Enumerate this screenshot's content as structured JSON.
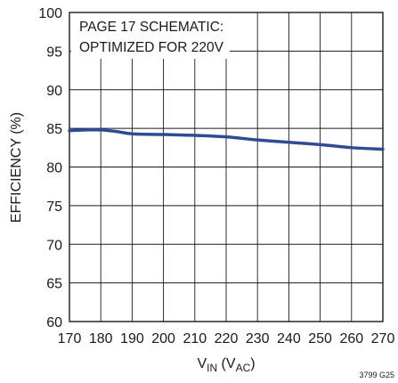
{
  "chart_data": {
    "type": "line",
    "title": "",
    "xlabel": {
      "main": "V",
      "sub1": "IN",
      "mid": " (V",
      "sub2": "AC",
      "end": ")"
    },
    "ylabel": "EFFICIENCY (%)",
    "xlim": [
      170,
      270
    ],
    "ylim": [
      60,
      100
    ],
    "xticks": [
      "170",
      "180",
      "190",
      "200",
      "210",
      "220",
      "230",
      "240",
      "250",
      "260",
      "270"
    ],
    "yticks": [
      "60",
      "65",
      "70",
      "75",
      "80",
      "85",
      "90",
      "95",
      "100"
    ],
    "grid": true,
    "annotation": [
      "PAGE 17 SCHEMATIC:",
      "OPTIMIZED FOR 220V"
    ],
    "figure_code": "3799 G25",
    "line_color": "#2e4b94",
    "series": [
      {
        "x": [
          170,
          175,
          180,
          185,
          190,
          200,
          210,
          220,
          230,
          240,
          250,
          260,
          270
        ],
        "y": [
          84.7,
          84.8,
          84.8,
          84.6,
          84.3,
          84.2,
          84.1,
          83.9,
          83.5,
          83.2,
          82.9,
          82.5,
          82.3
        ]
      }
    ]
  }
}
